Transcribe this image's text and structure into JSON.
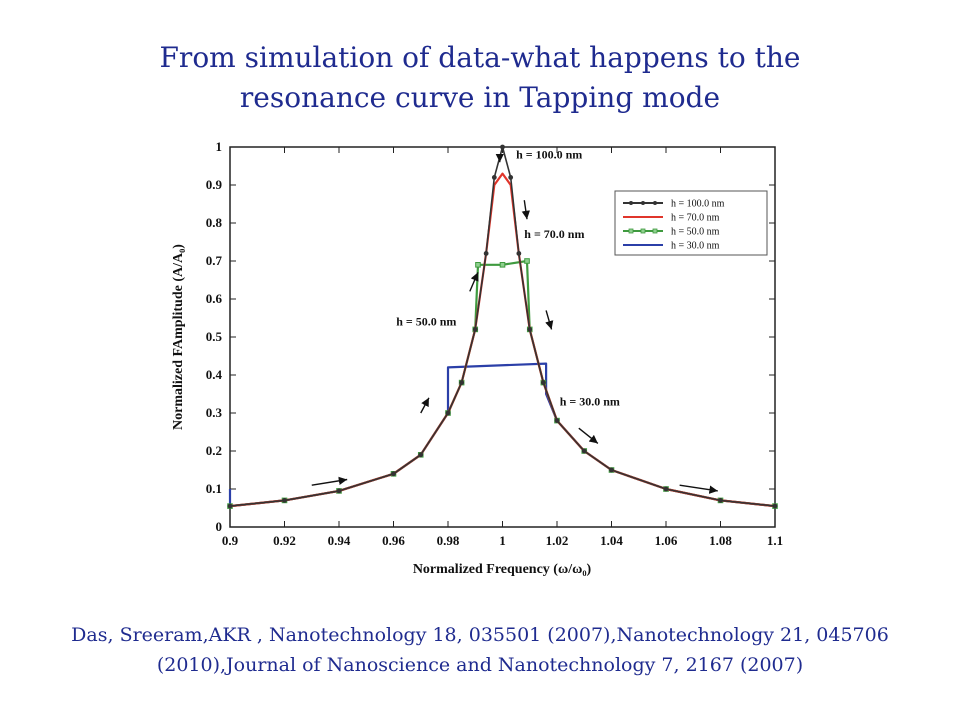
{
  "slide": {
    "title_line1": "From simulation of data-what happens to the",
    "title_line2": "resonance curve in Tapping mode",
    "citation": "Das, Sreeram,AKR , Nanotechnology 18, 035501 (2007),Nanotechnology 21, 045706 (2010),Journal of Nanoscience and Nanotechnology 7, 2167 (2007)"
  },
  "chart_data": {
    "type": "line",
    "xlabel": "Normalized Frequency (ω/ω₀)",
    "ylabel": "Normalized FAmplitude (A/A₀)",
    "xlim": [
      0.9,
      1.1
    ],
    "ylim": [
      0,
      1
    ],
    "xticks": [
      "0.9",
      "0.92",
      "0.94",
      "0.96",
      "0.98",
      "1",
      "1.02",
      "1.04",
      "1.06",
      "1.08",
      "1.1"
    ],
    "yticks": [
      "0",
      "0.1",
      "0.2",
      "0.3",
      "0.4",
      "0.5",
      "0.6",
      "0.7",
      "0.8",
      "0.9",
      "1"
    ],
    "grid": false,
    "legend_position": "top-right",
    "annotations": [
      {
        "text": "h = 100.0 nm",
        "x": 1.005,
        "y": 0.97
      },
      {
        "text": "h = 70.0 nm",
        "x": 1.008,
        "y": 0.76
      },
      {
        "text": "h = 50.0 nm",
        "x": 0.961,
        "y": 0.53
      },
      {
        "text": "h = 30.0 nm",
        "x": 1.021,
        "y": 0.32
      }
    ],
    "series": [
      {
        "name": "h = 100.0 nm",
        "color": "#333333",
        "marker": "dot",
        "x": [
          0.9,
          0.92,
          0.94,
          0.96,
          0.97,
          0.98,
          0.985,
          0.99,
          0.994,
          0.997,
          1.0,
          1.003,
          1.006,
          1.01,
          1.015,
          1.02,
          1.03,
          1.04,
          1.06,
          1.08,
          1.1
        ],
        "y": [
          0.055,
          0.07,
          0.095,
          0.14,
          0.19,
          0.3,
          0.38,
          0.52,
          0.72,
          0.92,
          1.0,
          0.92,
          0.72,
          0.52,
          0.38,
          0.28,
          0.2,
          0.15,
          0.1,
          0.07,
          0.055
        ]
      },
      {
        "name": "h = 70.0 nm",
        "color": "#e0352b",
        "marker": "none",
        "x": [
          0.9,
          0.92,
          0.94,
          0.96,
          0.97,
          0.98,
          0.985,
          0.99,
          0.994,
          0.997,
          1.0,
          1.003,
          1.006,
          1.01,
          1.015,
          1.02,
          1.03,
          1.04,
          1.06,
          1.08,
          1.1
        ],
        "y": [
          0.055,
          0.07,
          0.095,
          0.14,
          0.19,
          0.3,
          0.38,
          0.52,
          0.72,
          0.9,
          0.93,
          0.9,
          0.72,
          0.52,
          0.38,
          0.28,
          0.2,
          0.15,
          0.1,
          0.07,
          0.055
        ]
      },
      {
        "name": "h = 50.0 nm",
        "color": "#3f9a3f",
        "marker": "square",
        "x": [
          0.9,
          0.92,
          0.94,
          0.96,
          0.97,
          0.98,
          0.985,
          0.99,
          0.991,
          1.0,
          1.009,
          1.01,
          1.015,
          1.02,
          1.03,
          1.04,
          1.06,
          1.08,
          1.1
        ],
        "y": [
          0.055,
          0.07,
          0.095,
          0.14,
          0.19,
          0.3,
          0.38,
          0.52,
          0.69,
          0.69,
          0.7,
          0.52,
          0.38,
          0.28,
          0.2,
          0.15,
          0.1,
          0.07,
          0.055
        ]
      },
      {
        "name": "h = 30.0 nm",
        "color": "#2b3fa8",
        "marker": "none",
        "x": [
          0.9,
          0.9,
          0.92,
          0.94,
          0.96,
          0.97,
          0.98,
          0.98,
          1.016,
          1.016,
          1.02,
          1.03,
          1.04,
          1.06,
          1.08,
          1.1
        ],
        "y": [
          0.1,
          0.055,
          0.07,
          0.095,
          0.14,
          0.19,
          0.3,
          0.42,
          0.43,
          0.35,
          0.28,
          0.2,
          0.15,
          0.1,
          0.07,
          0.055
        ]
      }
    ]
  }
}
